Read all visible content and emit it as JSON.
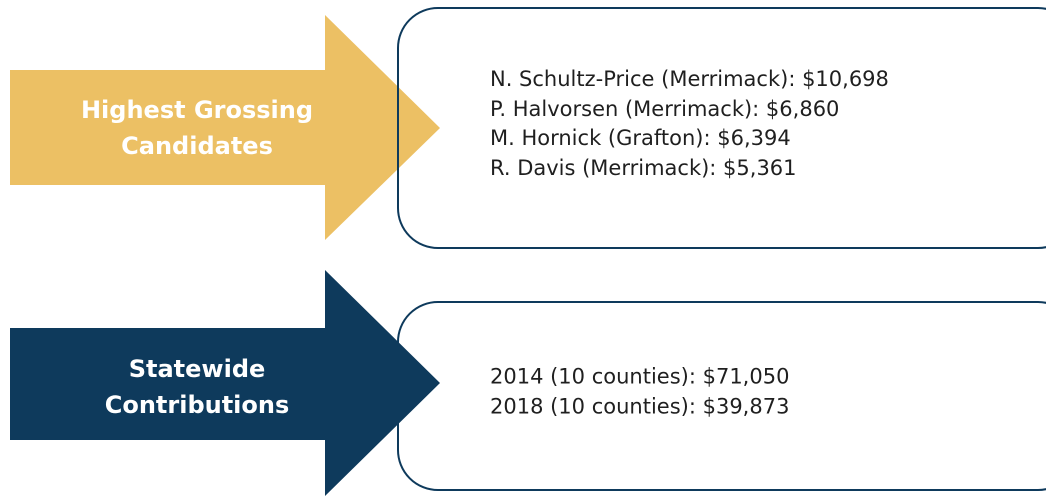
{
  "rows": [
    {
      "label": "Highest Grossing Candidates",
      "lines": [
        "N. Schultz-Price (Merrimack): $10,698",
        "P. Halvorsen (Merrimack): $6,860",
        "M. Hornick (Grafton): $6,394",
        "R. Davis (Merrimack): $5,361"
      ]
    },
    {
      "label": "Statewide Contributions",
      "lines": [
        "2014 (10 counties): $71,050",
        "2018 (10 counties): $39,873"
      ]
    }
  ]
}
